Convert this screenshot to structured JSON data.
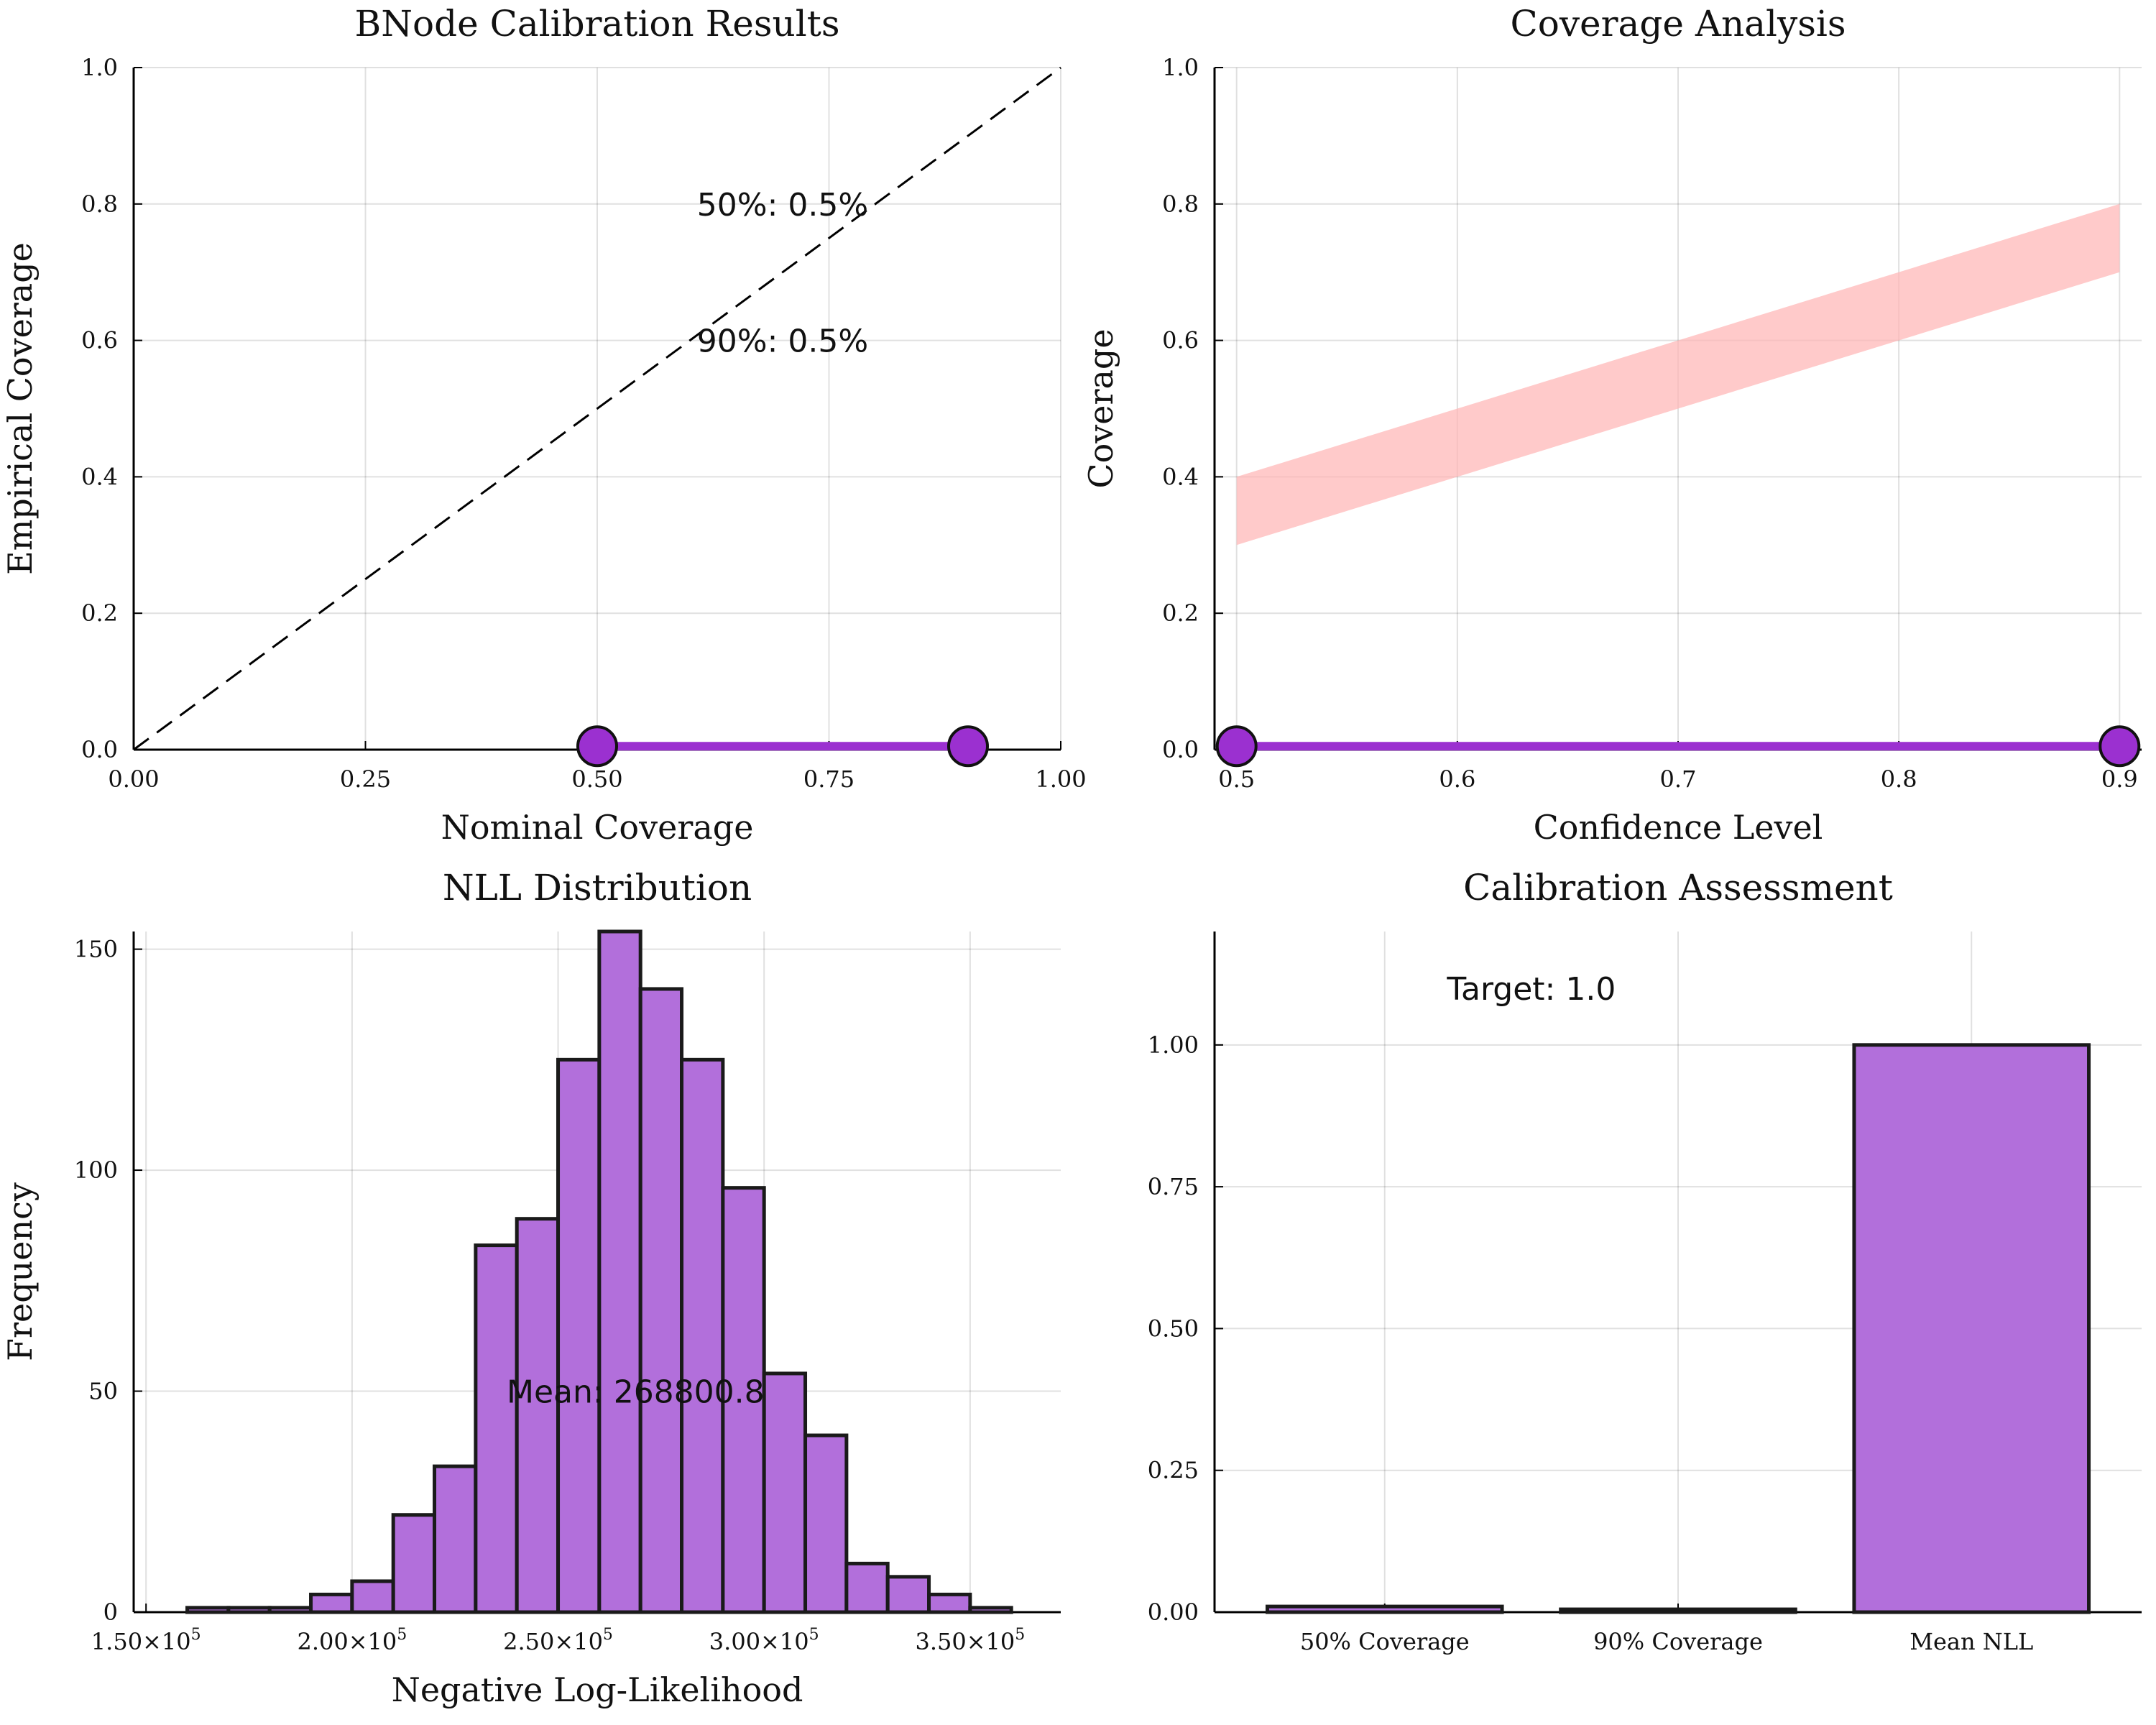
{
  "colors": {
    "accent": "#9b30d0",
    "bar_fill": "#b26fdb",
    "band": "#ffb3b3",
    "edge": "#1a1a1a"
  },
  "chart_data": [
    {
      "id": "p1",
      "type": "line",
      "title": "BNode Calibration Results",
      "xlabel": "Nominal Coverage",
      "ylabel": "Empirical Coverage",
      "xlim": [
        0.0,
        1.0
      ],
      "ylim": [
        0.0,
        1.0
      ],
      "xticks": [
        0.0,
        0.25,
        0.5,
        0.75,
        1.0
      ],
      "xtick_labels": [
        "0.00",
        "0.25",
        "0.50",
        "0.75",
        "1.00"
      ],
      "yticks": [
        0.0,
        0.2,
        0.4,
        0.6,
        0.8,
        1.0
      ],
      "ytick_labels": [
        "0.0",
        "0.2",
        "0.4",
        "0.6",
        "0.8",
        "1.0"
      ],
      "grid": true,
      "reference_line": {
        "x": [
          0.0,
          1.0
        ],
        "y": [
          0.0,
          1.0
        ],
        "style": "dashed"
      },
      "series": [
        {
          "x": [
            0.5,
            0.9
          ],
          "y": [
            0.005,
            0.005
          ],
          "markers": true
        }
      ],
      "annotations": [
        {
          "text": "50%: 0.5%",
          "x": 0.7,
          "y": 0.8
        },
        {
          "text": "90%: 0.5%",
          "x": 0.7,
          "y": 0.6
        }
      ]
    },
    {
      "id": "p2",
      "type": "line",
      "title": "Coverage Analysis",
      "xlabel": "Confidence Level",
      "ylabel": "Coverage",
      "xlim": [
        0.49,
        0.91
      ],
      "ylim": [
        0.0,
        1.0
      ],
      "xticks": [
        0.5,
        0.6,
        0.7,
        0.8,
        0.9
      ],
      "xtick_labels": [
        "0.5",
        "0.6",
        "0.7",
        "0.8",
        "0.9"
      ],
      "yticks": [
        0.0,
        0.2,
        0.4,
        0.6,
        0.8,
        1.0
      ],
      "ytick_labels": [
        "0.0",
        "0.2",
        "0.4",
        "0.6",
        "0.8",
        "1.0"
      ],
      "grid": true,
      "band": {
        "x": [
          0.5,
          0.9
        ],
        "lower": [
          0.3,
          0.7
        ],
        "upper": [
          0.4,
          0.8
        ]
      },
      "series": [
        {
          "x": [
            0.5,
            0.9
          ],
          "y": [
            0.005,
            0.005
          ],
          "markers": true
        }
      ]
    },
    {
      "id": "p3",
      "type": "bar",
      "subtype": "histogram",
      "title": "NLL Distribution",
      "xlabel": "Negative Log-Likelihood",
      "ylabel": "Frequency",
      "xlim": [
        147000,
        372000
      ],
      "ylim": [
        0,
        154
      ],
      "xticks": [
        150000,
        200000,
        250000,
        300000,
        350000
      ],
      "xtick_labels": [
        {
          "mantissa": "1.50",
          "exp": "5"
        },
        {
          "mantissa": "2.00",
          "exp": "5"
        },
        {
          "mantissa": "2.50",
          "exp": "5"
        },
        {
          "mantissa": "3.00",
          "exp": "5"
        },
        {
          "mantissa": "3.50",
          "exp": "5"
        }
      ],
      "yticks": [
        0,
        50,
        100,
        150
      ],
      "ytick_labels": [
        "0",
        "50",
        "100",
        "150"
      ],
      "grid": true,
      "bin_start": 160000,
      "bin_width": 10000,
      "counts": [
        1,
        1,
        1,
        4,
        7,
        22,
        33,
        83,
        89,
        125,
        154,
        141,
        125,
        96,
        54,
        40,
        11,
        8,
        4,
        1
      ],
      "annotations": [
        {
          "text": "Mean: 268800.8",
          "x": 268800.8,
          "y": 50
        }
      ]
    },
    {
      "id": "p4",
      "type": "bar",
      "title": "Calibration Assessment",
      "xlabel": "",
      "ylabel": "",
      "categories": [
        "50% Coverage",
        "90% Coverage",
        "Mean NLL"
      ],
      "values": [
        0.01,
        0.005,
        1.0
      ],
      "ylim": [
        0,
        1.2
      ],
      "yticks": [
        0.0,
        0.25,
        0.5,
        0.75,
        1.0
      ],
      "ytick_labels": [
        "0.00",
        "0.25",
        "0.50",
        "0.75",
        "1.00"
      ],
      "grid": true,
      "annotations": [
        {
          "text": "Target: 1.0",
          "x": 0.5,
          "y": 1.1
        }
      ]
    }
  ]
}
